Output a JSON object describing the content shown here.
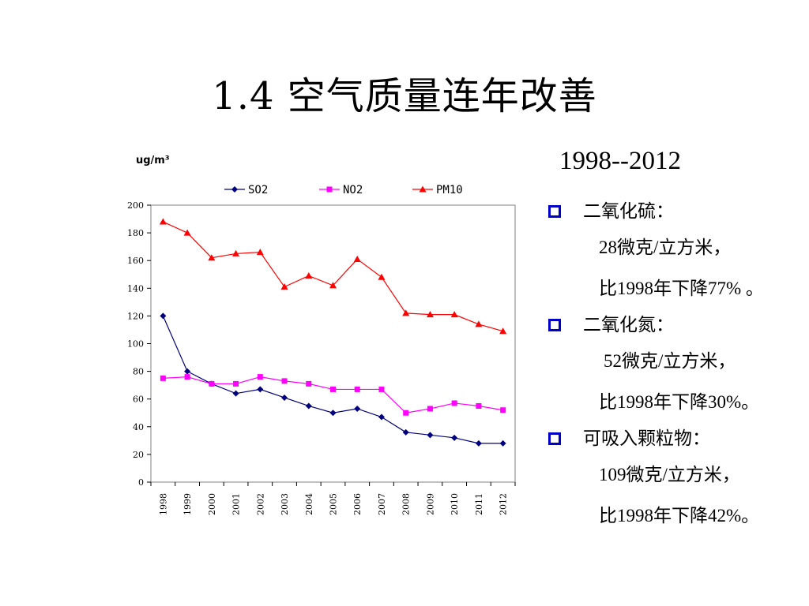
{
  "slide": {
    "title": "1.4 空气质量连年改善",
    "year_range": "1998--2012"
  },
  "chart_data": {
    "type": "line",
    "unit": "ug/m³",
    "x": [
      "1998",
      "1999",
      "2000",
      "2001",
      "2002",
      "2003",
      "2004",
      "2005",
      "2006",
      "2007",
      "2008",
      "2009",
      "2010",
      "2011",
      "2012"
    ],
    "ylim": [
      0,
      200
    ],
    "yticks": [
      0,
      20,
      40,
      60,
      80,
      100,
      120,
      140,
      160,
      180,
      200
    ],
    "grid": false,
    "legend": "top",
    "series": [
      {
        "name": "SO2",
        "color": "#000080",
        "marker": "diamond",
        "values": [
          120,
          80,
          71,
          64,
          67,
          61,
          55,
          50,
          53,
          47,
          36,
          34,
          32,
          28,
          28
        ]
      },
      {
        "name": "NO2",
        "color": "#ff00ff",
        "marker": "square",
        "values": [
          75,
          76,
          71,
          71,
          76,
          73,
          71,
          67,
          67,
          67,
          50,
          53,
          57,
          55,
          52
        ]
      },
      {
        "name": "PM10",
        "color": "#ff0000",
        "marker": "triangle",
        "values": [
          188,
          180,
          162,
          165,
          166,
          141,
          149,
          142,
          161,
          148,
          122,
          121,
          121,
          114,
          109
        ]
      }
    ]
  },
  "bullets": [
    {
      "label": "二氧化硫：",
      "amount": "28微克/立方米，",
      "drop": "比1998年下降77% 。",
      "indent": false
    },
    {
      "label": "二氧化氮：",
      "amount": "52微克/立方米，",
      "drop": "比1998年下降30%。",
      "indent": true
    },
    {
      "label": "可吸入颗粒物：",
      "amount": "109微克/立方米，",
      "drop": "比1998年下降42%。",
      "indent": false
    }
  ]
}
